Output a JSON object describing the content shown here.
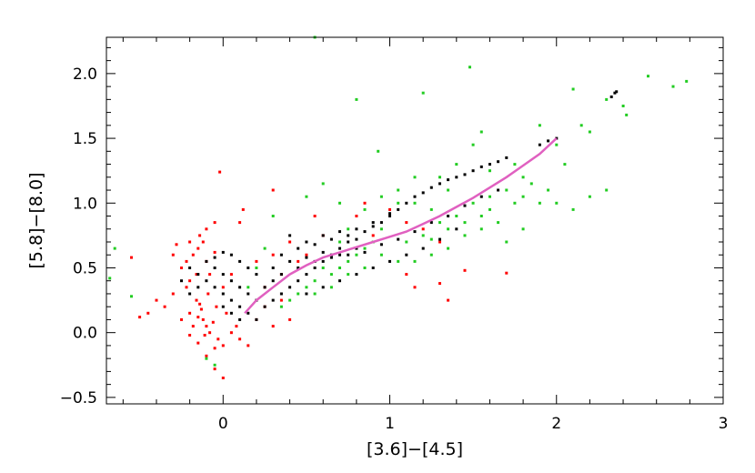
{
  "chart_data": {
    "type": "scatter",
    "title": "",
    "xlabel": "[3.6]−[4.5]",
    "ylabel": "[5.8]−[8.0]",
    "xlim": [
      -0.7,
      3.0
    ],
    "ylim": [
      -0.55,
      2.28
    ],
    "x_ticks": [
      0,
      1,
      2,
      3
    ],
    "x_tick_labels": [
      "0",
      "1",
      "2",
      "3"
    ],
    "y_ticks": [
      -0.5,
      0.0,
      0.5,
      1.0,
      1.5,
      2.0
    ],
    "y_tick_labels": [
      "−0.5",
      "0.0",
      "0.5",
      "1.0",
      "1.5",
      "2.0"
    ],
    "grid": false,
    "legend": "none",
    "series": [
      {
        "color": "#ff0000",
        "marker": "square",
        "points": [
          [
            -0.2,
            0.7
          ],
          [
            -0.15,
            0.65
          ],
          [
            -0.22,
            0.55
          ],
          [
            -0.18,
            0.6
          ],
          [
            -0.12,
            0.7
          ],
          [
            -0.25,
            0.5
          ],
          [
            -0.2,
            0.4
          ],
          [
            -0.1,
            0.55
          ],
          [
            -0.16,
            0.45
          ],
          [
            -0.05,
            0.62
          ],
          [
            -0.28,
            0.68
          ],
          [
            -0.14,
            0.75
          ],
          [
            -0.08,
            0.45
          ],
          [
            -0.22,
            0.35
          ],
          [
            -0.3,
            0.6
          ],
          [
            -0.12,
            0.1
          ],
          [
            -0.1,
            0.05
          ],
          [
            -0.15,
            0.12
          ],
          [
            -0.08,
            0.0
          ],
          [
            -0.13,
            0.18
          ],
          [
            -0.06,
            0.08
          ],
          [
            -0.18,
            0.05
          ],
          [
            -0.11,
            -0.02
          ],
          [
            -0.2,
            0.15
          ],
          [
            -0.04,
            0.2
          ],
          [
            -0.16,
            0.25
          ],
          [
            -0.09,
            0.3
          ],
          [
            -0.25,
            0.1
          ],
          [
            -0.03,
            -0.05
          ],
          [
            -0.14,
            0.22
          ],
          [
            -0.3,
            0.3
          ],
          [
            -0.35,
            0.2
          ],
          [
            -0.4,
            0.25
          ],
          [
            -0.5,
            0.12
          ],
          [
            -0.45,
            0.15
          ],
          [
            0.05,
            0.0
          ],
          [
            0.1,
            -0.05
          ],
          [
            0.0,
            -0.1
          ],
          [
            -0.05,
            -0.12
          ],
          [
            0.02,
            0.15
          ],
          [
            -0.1,
            -0.18
          ],
          [
            -0.15,
            -0.08
          ],
          [
            0.08,
            0.05
          ],
          [
            -0.2,
            -0.02
          ],
          [
            0.0,
            0.35
          ],
          [
            0.0,
            -0.35
          ],
          [
            -0.05,
            -0.28
          ],
          [
            0.3,
            0.6
          ],
          [
            0.35,
            0.45
          ],
          [
            0.4,
            0.7
          ],
          [
            0.45,
            0.55
          ],
          [
            0.5,
            0.6
          ],
          [
            0.25,
            0.2
          ],
          [
            0.2,
            0.1
          ],
          [
            0.3,
            0.05
          ],
          [
            0.15,
            -0.1
          ],
          [
            0.05,
            0.45
          ],
          [
            0.1,
            0.85
          ],
          [
            0.12,
            0.95
          ],
          [
            0.3,
            1.1
          ],
          [
            0.55,
            0.9
          ],
          [
            0.6,
            0.75
          ],
          [
            0.8,
            0.9
          ],
          [
            0.9,
            0.75
          ],
          [
            1.0,
            0.95
          ],
          [
            1.1,
            0.85
          ],
          [
            1.2,
            0.8
          ],
          [
            1.3,
            0.7
          ],
          [
            1.35,
            0.25
          ],
          [
            1.3,
            0.38
          ],
          [
            1.15,
            0.35
          ],
          [
            1.1,
            0.45
          ],
          [
            1.45,
            0.48
          ],
          [
            1.7,
            0.46
          ],
          [
            0.85,
            1.0
          ],
          [
            -0.55,
            0.58
          ],
          [
            -0.02,
            1.24
          ],
          [
            -0.1,
            0.8
          ],
          [
            -0.05,
            0.85
          ],
          [
            0.2,
            0.55
          ],
          [
            0.25,
            0.35
          ],
          [
            0.4,
            0.1
          ],
          [
            0.35,
            0.25
          ]
        ]
      },
      {
        "color": "#22cc22",
        "marker": "square",
        "points": [
          [
            0.55,
            2.28
          ],
          [
            1.48,
            2.05
          ],
          [
            1.2,
            1.85
          ],
          [
            0.8,
            1.8
          ],
          [
            2.3,
            1.8
          ],
          [
            2.55,
            1.98
          ],
          [
            2.7,
            1.9
          ],
          [
            2.78,
            1.94
          ],
          [
            2.4,
            1.75
          ],
          [
            2.42,
            1.68
          ],
          [
            2.1,
            1.88
          ],
          [
            2.2,
            1.55
          ],
          [
            2.15,
            1.6
          ],
          [
            1.9,
            1.6
          ],
          [
            1.55,
            1.55
          ],
          [
            0.93,
            1.4
          ],
          [
            1.5,
            1.45
          ],
          [
            1.6,
            1.25
          ],
          [
            1.75,
            1.3
          ],
          [
            1.8,
            1.2
          ],
          [
            1.85,
            1.15
          ],
          [
            1.95,
            1.1
          ],
          [
            2.05,
            1.3
          ],
          [
            2.0,
            1.45
          ],
          [
            1.3,
            1.2
          ],
          [
            1.35,
            1.1
          ],
          [
            1.25,
            0.95
          ],
          [
            1.15,
            1.0
          ],
          [
            1.05,
            1.0
          ],
          [
            1.0,
            0.9
          ],
          [
            0.95,
            0.8
          ],
          [
            0.9,
            0.7
          ],
          [
            0.85,
            0.65
          ],
          [
            0.8,
            0.6
          ],
          [
            0.75,
            0.55
          ],
          [
            0.7,
            0.5
          ],
          [
            0.65,
            0.45
          ],
          [
            0.6,
            0.5
          ],
          [
            0.55,
            0.4
          ],
          [
            0.5,
            0.35
          ],
          [
            0.45,
            0.3
          ],
          [
            0.4,
            0.25
          ],
          [
            0.35,
            0.2
          ],
          [
            1.1,
            0.7
          ],
          [
            1.2,
            0.75
          ],
          [
            1.3,
            0.85
          ],
          [
            1.4,
            0.9
          ],
          [
            1.5,
            1.0
          ],
          [
            1.6,
            1.05
          ],
          [
            1.7,
            1.1
          ],
          [
            1.75,
            1.0
          ],
          [
            1.8,
            1.05
          ],
          [
            1.9,
            1.0
          ],
          [
            2.0,
            1.0
          ],
          [
            2.1,
            0.95
          ],
          [
            1.65,
            0.85
          ],
          [
            1.55,
            0.8
          ],
          [
            1.45,
            0.75
          ],
          [
            1.35,
            0.65
          ],
          [
            1.25,
            0.6
          ],
          [
            1.15,
            0.55
          ],
          [
            1.05,
            0.55
          ],
          [
            0.95,
            0.6
          ],
          [
            0.85,
            0.5
          ],
          [
            0.75,
            0.45
          ],
          [
            0.65,
            0.35
          ],
          [
            0.55,
            0.3
          ],
          [
            0.5,
            1.05
          ],
          [
            0.6,
            1.15
          ],
          [
            0.7,
            1.0
          ],
          [
            0.3,
            0.9
          ],
          [
            0.25,
            0.65
          ],
          [
            0.2,
            0.5
          ],
          [
            0.15,
            0.35
          ],
          [
            -0.1,
            -0.2
          ],
          [
            -0.05,
            -0.25
          ],
          [
            -0.65,
            0.65
          ],
          [
            -0.68,
            0.42
          ],
          [
            -0.55,
            0.28
          ],
          [
            1.05,
            1.1
          ],
          [
            1.15,
            1.2
          ],
          [
            1.4,
            1.3
          ],
          [
            0.95,
            1.05
          ],
          [
            0.85,
            0.95
          ],
          [
            0.75,
            0.8
          ],
          [
            0.7,
            0.7
          ],
          [
            1.6,
            0.95
          ],
          [
            1.7,
            0.7
          ],
          [
            1.8,
            0.8
          ],
          [
            2.2,
            1.05
          ],
          [
            2.3,
            1.1
          ],
          [
            1.25,
            0.72
          ],
          [
            1.35,
            0.8
          ],
          [
            1.45,
            0.85
          ],
          [
            1.55,
            0.9
          ]
        ]
      },
      {
        "color": "#000000",
        "marker": "square",
        "points": [
          [
            -0.1,
            0.55
          ],
          [
            -0.05,
            0.5
          ],
          [
            0.0,
            0.45
          ],
          [
            0.05,
            0.4
          ],
          [
            0.1,
            0.35
          ],
          [
            0.15,
            0.3
          ],
          [
            0.2,
            0.25
          ],
          [
            0.25,
            0.2
          ],
          [
            0.3,
            0.25
          ],
          [
            0.35,
            0.3
          ],
          [
            0.4,
            0.35
          ],
          [
            0.45,
            0.4
          ],
          [
            0.5,
            0.45
          ],
          [
            0.55,
            0.5
          ],
          [
            0.6,
            0.55
          ],
          [
            0.65,
            0.6
          ],
          [
            0.7,
            0.65
          ],
          [
            0.75,
            0.7
          ],
          [
            0.8,
            0.72
          ],
          [
            0.85,
            0.78
          ],
          [
            0.9,
            0.82
          ],
          [
            0.95,
            0.85
          ],
          [
            1.0,
            0.9
          ],
          [
            1.05,
            0.95
          ],
          [
            1.1,
            1.0
          ],
          [
            1.15,
            1.05
          ],
          [
            1.2,
            1.08
          ],
          [
            1.25,
            1.12
          ],
          [
            1.3,
            1.15
          ],
          [
            1.35,
            1.18
          ],
          [
            1.4,
            1.2
          ],
          [
            1.45,
            1.22
          ],
          [
            1.5,
            1.25
          ],
          [
            1.55,
            1.28
          ],
          [
            1.6,
            1.3
          ],
          [
            1.65,
            1.32
          ],
          [
            1.7,
            1.35
          ],
          [
            0.4,
            0.75
          ],
          [
            0.5,
            0.7
          ],
          [
            0.6,
            0.75
          ],
          [
            0.7,
            0.78
          ],
          [
            0.8,
            0.8
          ],
          [
            0.9,
            0.85
          ],
          [
            1.0,
            0.92
          ],
          [
            0.3,
            0.5
          ],
          [
            0.4,
            0.55
          ],
          [
            0.5,
            0.58
          ],
          [
            0.6,
            0.62
          ],
          [
            0.7,
            0.6
          ],
          [
            0.8,
            0.65
          ],
          [
            0.2,
            0.45
          ],
          [
            0.15,
            0.5
          ],
          [
            0.1,
            0.55
          ],
          [
            0.05,
            0.6
          ],
          [
            0.0,
            0.62
          ],
          [
            -0.05,
            0.58
          ],
          [
            0.0,
            0.3
          ],
          [
            0.05,
            0.25
          ],
          [
            0.1,
            0.2
          ],
          [
            0.15,
            0.15
          ],
          [
            0.2,
            0.1
          ],
          [
            0.1,
            0.1
          ],
          [
            0.05,
            0.15
          ],
          [
            0.0,
            0.2
          ],
          [
            -0.05,
            0.35
          ],
          [
            -0.1,
            0.4
          ],
          [
            -0.15,
            0.45
          ],
          [
            -0.2,
            0.5
          ],
          [
            -0.25,
            0.4
          ],
          [
            -0.2,
            0.3
          ],
          [
            -0.15,
            0.35
          ],
          [
            0.3,
            0.4
          ],
          [
            0.35,
            0.45
          ],
          [
            0.45,
            0.5
          ],
          [
            0.55,
            0.55
          ],
          [
            0.65,
            0.58
          ],
          [
            0.75,
            0.6
          ],
          [
            0.85,
            0.62
          ],
          [
            0.95,
            0.68
          ],
          [
            1.05,
            0.72
          ],
          [
            1.15,
            0.78
          ],
          [
            1.25,
            0.85
          ],
          [
            1.35,
            0.9
          ],
          [
            1.45,
            0.98
          ],
          [
            1.55,
            1.05
          ],
          [
            1.65,
            1.1
          ],
          [
            2.35,
            1.85
          ],
          [
            2.33,
            1.82
          ],
          [
            2.36,
            1.86
          ],
          [
            1.95,
            1.48
          ],
          [
            2.0,
            1.5
          ],
          [
            1.9,
            1.45
          ],
          [
            0.25,
            0.35
          ],
          [
            0.35,
            0.6
          ],
          [
            0.45,
            0.65
          ],
          [
            0.55,
            0.68
          ],
          [
            0.65,
            0.72
          ],
          [
            0.75,
            0.75
          ],
          [
            0.5,
            0.3
          ],
          [
            0.6,
            0.35
          ],
          [
            0.7,
            0.4
          ],
          [
            0.8,
            0.45
          ],
          [
            0.9,
            0.5
          ],
          [
            1.0,
            0.55
          ],
          [
            1.1,
            0.6
          ],
          [
            1.2,
            0.65
          ],
          [
            1.3,
            0.72
          ],
          [
            1.4,
            0.8
          ]
        ]
      }
    ],
    "curve": {
      "color": "#e060c0",
      "points": [
        [
          0.13,
          0.15
        ],
        [
          0.2,
          0.25
        ],
        [
          0.3,
          0.35
        ],
        [
          0.4,
          0.45
        ],
        [
          0.5,
          0.52
        ],
        [
          0.6,
          0.58
        ],
        [
          0.7,
          0.62
        ],
        [
          0.8,
          0.66
        ],
        [
          0.9,
          0.7
        ],
        [
          1.0,
          0.74
        ],
        [
          1.1,
          0.78
        ],
        [
          1.2,
          0.84
        ],
        [
          1.3,
          0.9
        ],
        [
          1.4,
          0.97
        ],
        [
          1.5,
          1.04
        ],
        [
          1.6,
          1.12
        ],
        [
          1.7,
          1.2
        ],
        [
          1.8,
          1.29
        ],
        [
          1.9,
          1.38
        ],
        [
          2.0,
          1.5
        ]
      ]
    }
  }
}
